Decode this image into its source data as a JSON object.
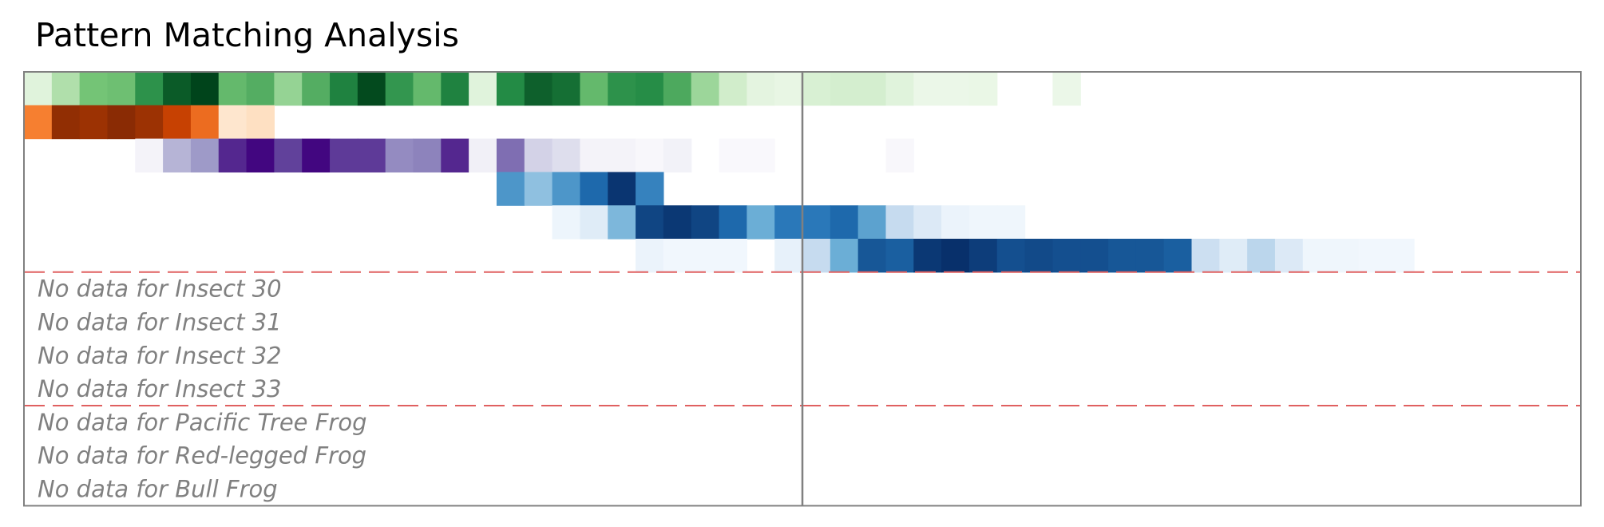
{
  "chart_data": {
    "type": "heatmap",
    "title": "Pattern Matching Analysis",
    "n_columns": 56,
    "vertical_marker_column": 28,
    "rows": [
      {
        "palette": "Greens",
        "values": [
          0.12,
          0.32,
          0.5,
          0.52,
          0.72,
          0.92,
          1.0,
          0.55,
          0.6,
          0.4,
          0.6,
          0.78,
          0.98,
          0.7,
          0.55,
          0.78,
          0.12,
          0.75,
          0.9,
          0.85,
          0.55,
          0.72,
          0.74,
          0.62,
          0.38,
          0.2,
          0.1,
          0.08,
          0.16,
          0.18,
          0.18,
          0.12,
          0.06,
          0.06,
          0.07,
          0,
          0,
          0.06,
          0,
          0,
          0,
          0,
          0,
          0,
          0,
          0,
          0,
          0,
          0,
          0,
          0,
          0,
          0,
          0,
          0,
          0
        ]
      },
      {
        "palette": "Oranges",
        "values": [
          0.55,
          0.95,
          0.92,
          0.97,
          0.92,
          0.8,
          0.62,
          0.1,
          0.14,
          0,
          0,
          0,
          0,
          0,
          0,
          0,
          0,
          0,
          0,
          0,
          0,
          0,
          0,
          0,
          0,
          0,
          0,
          0,
          0,
          0,
          0,
          0,
          0,
          0,
          0,
          0,
          0,
          0,
          0,
          0,
          0,
          0,
          0,
          0,
          0,
          0,
          0,
          0,
          0,
          0,
          0,
          0,
          0,
          0,
          0,
          0
        ]
      },
      {
        "palette": "Purples",
        "values": [
          0,
          0,
          0,
          0,
          0.06,
          0.4,
          0.5,
          0.88,
          0.98,
          0.8,
          0.98,
          0.82,
          0.82,
          0.55,
          0.58,
          0.88,
          0.08,
          0.65,
          0.28,
          0.22,
          0.06,
          0.06,
          0.03,
          0.07,
          0,
          0.02,
          0.02,
          0,
          0,
          0,
          0,
          0.03,
          0,
          0,
          0,
          0,
          0,
          0,
          0,
          0,
          0,
          0,
          0,
          0,
          0,
          0,
          0,
          0,
          0,
          0,
          0,
          0,
          0,
          0,
          0,
          0
        ]
      },
      {
        "palette": "Blues",
        "values": [
          0,
          0,
          0,
          0,
          0,
          0,
          0,
          0,
          0,
          0,
          0,
          0,
          0,
          0,
          0,
          0,
          0,
          0.6,
          0.4,
          0.6,
          0.78,
          0.98,
          0.68,
          0,
          0,
          0,
          0,
          0,
          0,
          0,
          0,
          0,
          0,
          0,
          0,
          0,
          0,
          0,
          0,
          0,
          0,
          0,
          0,
          0,
          0,
          0,
          0,
          0,
          0,
          0,
          0,
          0,
          0,
          0,
          0,
          0
        ]
      },
      {
        "palette": "Blues",
        "values": [
          0,
          0,
          0,
          0,
          0,
          0,
          0,
          0,
          0,
          0,
          0,
          0,
          0,
          0,
          0,
          0,
          0,
          0,
          0,
          0.05,
          0.12,
          0.45,
          0.92,
          0.97,
          0.92,
          0.78,
          0.5,
          0.72,
          0.72,
          0.78,
          0.55,
          0.25,
          0.14,
          0.06,
          0.04,
          0.04,
          0,
          0,
          0,
          0,
          0,
          0,
          0,
          0,
          0,
          0,
          0,
          0,
          0,
          0,
          0,
          0,
          0,
          0,
          0,
          0
        ]
      },
      {
        "palette": "Blues",
        "values": [
          0,
          0,
          0,
          0,
          0,
          0,
          0,
          0,
          0,
          0,
          0,
          0,
          0,
          0,
          0,
          0,
          0,
          0,
          0,
          0,
          0,
          0,
          0.06,
          0.03,
          0.03,
          0.03,
          0,
          0.08,
          0.25,
          0.5,
          0.85,
          0.82,
          0.97,
          1.0,
          0.95,
          0.88,
          0.9,
          0.88,
          0.88,
          0.85,
          0.85,
          0.82,
          0.22,
          0.12,
          0.28,
          0.14,
          0.04,
          0.04,
          0.03,
          0.03,
          0,
          0,
          0,
          0,
          0,
          0
        ]
      }
    ],
    "empty_rows": [
      "No data for Insect 30",
      "No data for Insect 31",
      "No data for Insect 32",
      "No data for Insect 33",
      "No data for Pacific Tree Frog",
      "No data for Red-legged Frog",
      "No data for Bull Frog"
    ],
    "group_separators_after_row": [
      6,
      10
    ],
    "colors": {
      "frame": "#808080",
      "separator": "#e06060",
      "empty_text": "#808080"
    }
  }
}
